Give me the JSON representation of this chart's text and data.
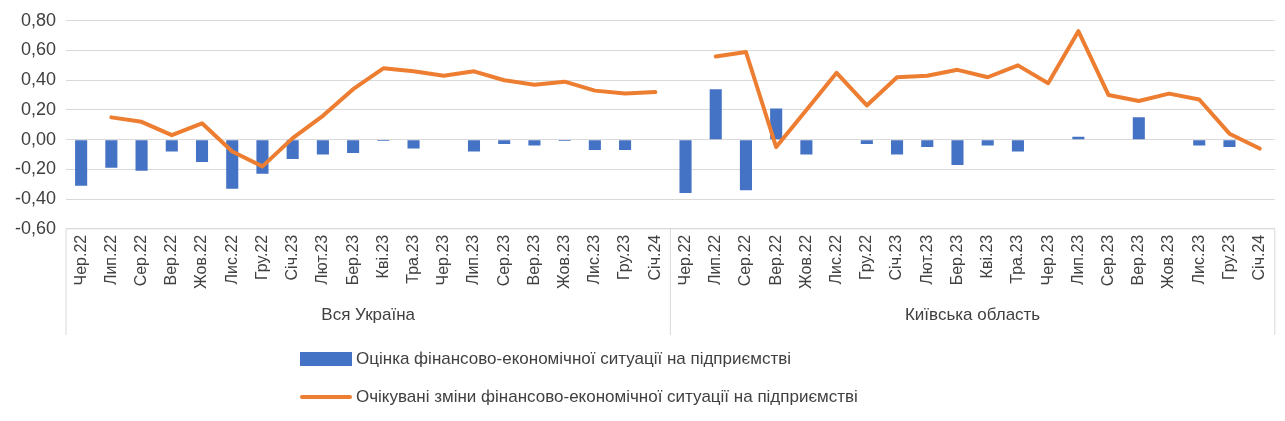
{
  "chart_data": {
    "type": "bar",
    "categories": [
      "Чер.22",
      "Лип.22",
      "Сер.22",
      "Вер.22",
      "Жов.22",
      "Лис.22",
      "Гру.22",
      "Січ.23",
      "Лют.23",
      "Бер.23",
      "Кві.23",
      "Тра.23",
      "Чер.23",
      "Лип.23",
      "Сер.23",
      "Вер.23",
      "Жов.23",
      "Лис.23",
      "Гру.23",
      "Січ.24",
      "Чер.22",
      "Лип.22",
      "Сер.22",
      "Вер.22",
      "Жов.22",
      "Лис.22",
      "Гру.22",
      "Січ.23",
      "Лют.23",
      "Бер.23",
      "Кві.23",
      "Тра.23",
      "Чер.23",
      "Лип.23",
      "Сер.23",
      "Вер.23",
      "Жов.23",
      "Лис.23",
      "Гру.23",
      "Січ.24"
    ],
    "series": [
      {
        "name": "Оцінка фінансово-економічної ситуації на підприємстві",
        "color": "#4472c4",
        "values": [
          -0.31,
          -0.19,
          -0.21,
          -0.08,
          -0.15,
          -0.33,
          -0.23,
          -0.13,
          -0.1,
          -0.09,
          -0.01,
          -0.06,
          null,
          -0.08,
          -0.03,
          -0.04,
          -0.01,
          -0.07,
          -0.07,
          null,
          -0.36,
          0.34,
          -0.34,
          0.21,
          -0.1,
          null,
          -0.03,
          -0.1,
          -0.05,
          -0.17,
          -0.04,
          -0.08,
          null,
          0.02,
          null,
          0.15,
          null,
          -0.04,
          -0.05,
          null
        ]
      },
      {
        "name": "Очікувані зміни фінансово-економічної ситуації на підприємстві",
        "type": "line",
        "color": "#ed7d31",
        "values": [
          null,
          0.15,
          0.12,
          0.03,
          0.11,
          -0.08,
          -0.18,
          0.01,
          0.16,
          0.34,
          0.48,
          0.46,
          0.43,
          0.46,
          0.4,
          0.37,
          0.39,
          0.33,
          0.31,
          0.32,
          null,
          0.56,
          0.59,
          -0.05,
          0.2,
          0.45,
          0.23,
          0.42,
          0.43,
          0.47,
          0.42,
          0.5,
          0.38,
          0.73,
          0.3,
          0.26,
          0.31,
          0.27,
          0.04,
          -0.06
        ]
      }
    ],
    "ylim": [
      -0.6,
      0.8
    ],
    "yticks": [
      {
        "value": -0.6,
        "label": "-0,60"
      },
      {
        "value": -0.4,
        "label": "-0,40"
      },
      {
        "value": -0.2,
        "label": "-0,20"
      },
      {
        "value": 0,
        "label": "0,00"
      },
      {
        "value": 0.2,
        "label": "0,20"
      },
      {
        "value": 0.4,
        "label": "0,40"
      },
      {
        "value": 0.6,
        "label": "0,60"
      },
      {
        "value": 0.8,
        "label": "0,80"
      }
    ],
    "annotations": [
      "Вся Україна",
      "Київська область"
    ],
    "grid": "y",
    "legend": "bottom",
    "marker": "none",
    "line_style": "solid"
  }
}
